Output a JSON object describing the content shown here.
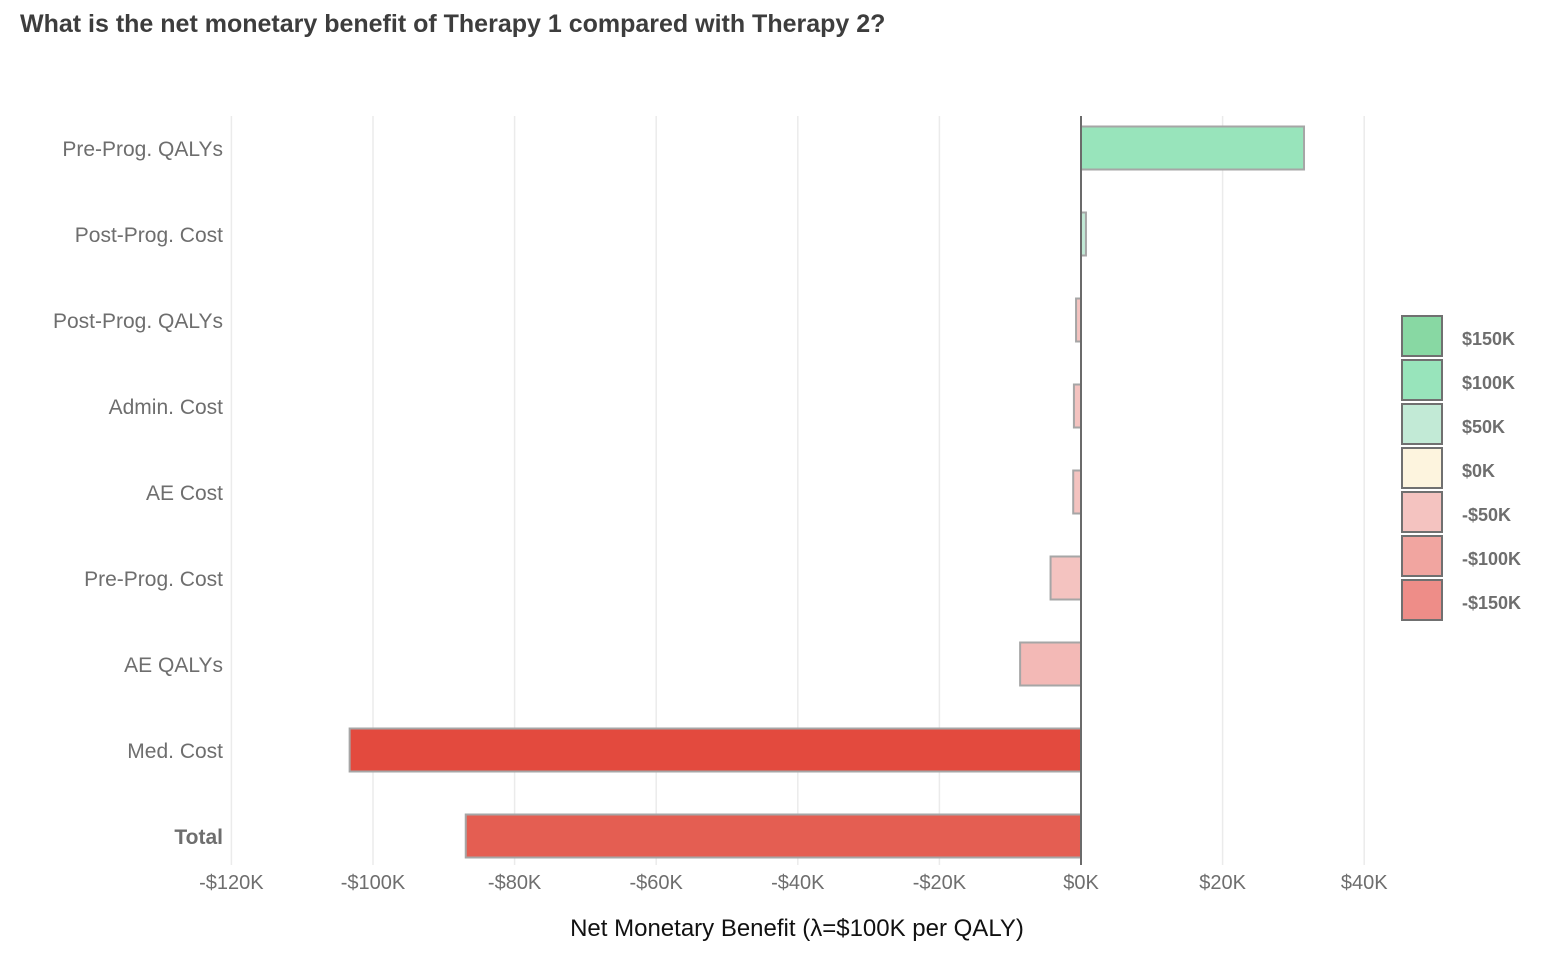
{
  "chart_data": {
    "type": "bar",
    "orientation": "horizontal",
    "title": "What is the net monetary benefit of Therapy 1 compared with Therapy 2?",
    "xlabel": "Net Monetary Benefit (λ=$100K per QALY)",
    "ylabel": "",
    "xlim": [
      -122000,
      48000
    ],
    "xticks": [
      -120000,
      -100000,
      -80000,
      -60000,
      -40000,
      -20000,
      0,
      20000,
      40000
    ],
    "xtick_labels": [
      "-$120K",
      "-$100K",
      "-$80K",
      "-$60K",
      "-$40K",
      "-$20K",
      "$0K",
      "$20K",
      "$40K"
    ],
    "grid": true,
    "categories": [
      "Pre-Prog. QALYs",
      "Post-Prog. Cost",
      "Post-Prog. QALYs",
      "Admin. Cost",
      "AE Cost",
      "Pre-Prog. Cost",
      "AE QALYs",
      "Med. Cost",
      "Total"
    ],
    "values": [
      31500,
      700,
      -700,
      -1000,
      -1100,
      -4300,
      -8600,
      -103300,
      -86900
    ],
    "bar_colors": [
      "#98e4bb",
      "#c2ead6",
      "#f4c3c0",
      "#f4c3c0",
      "#f4c3c0",
      "#f4c3c0",
      "#f3b9b6",
      "#e34a3e",
      "#e45e52"
    ],
    "legend": {
      "placement": "right",
      "entries": [
        {
          "label": "$150K",
          "color": "#88d8a3"
        },
        {
          "label": "$100K",
          "color": "#98e4bb"
        },
        {
          "label": "$50K",
          "color": "#c2ead6"
        },
        {
          "label": "$0K",
          "color": "#fdf4de"
        },
        {
          "label": "-$50K",
          "color": "#f4c3c0"
        },
        {
          "label": "-$100K",
          "color": "#f1a5a0"
        },
        {
          "label": "-$150K",
          "color": "#ee8d88"
        }
      ]
    }
  }
}
